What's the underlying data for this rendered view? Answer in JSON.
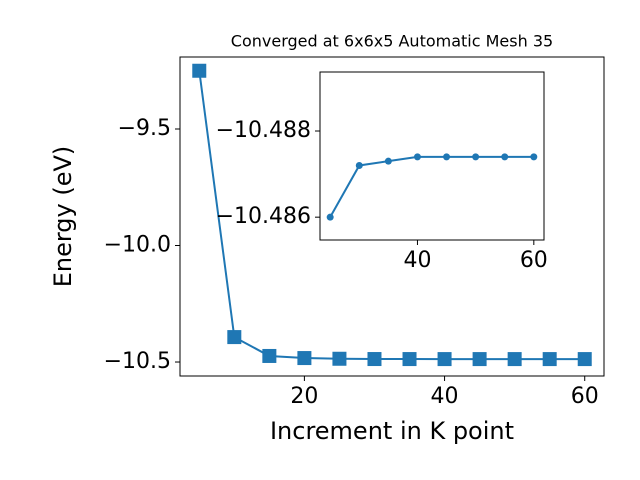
{
  "chart_data": [
    {
      "type": "line",
      "title": "Converged at 6x6x5 Automatic Mesh 35",
      "x_label": "Increment in K point",
      "y_label": "Energy (eV)",
      "x": [
        5,
        10,
        15,
        20,
        25,
        30,
        35,
        40,
        45,
        50,
        55,
        60
      ],
      "values": [
        -9.25,
        -10.393,
        -10.474,
        -10.483,
        -10.486,
        -10.4872,
        -10.4873,
        -10.4874,
        -10.4874,
        -10.4874,
        -10.4874,
        -10.4874
      ],
      "color": "#1f77b4",
      "marker": "square",
      "xlim": [
        2.25,
        62.75
      ],
      "xticks": [
        20,
        40,
        60
      ],
      "ylim": [
        -10.56,
        -9.191
      ],
      "yticks": [
        {
          "value": -10.5,
          "label": "−10.5"
        },
        {
          "value": -10.0,
          "label": "−10.0"
        },
        {
          "value": -9.5,
          "label": "−9.5"
        }
      ]
    },
    {
      "type": "line",
      "x": [
        25,
        30,
        35,
        40,
        45,
        50,
        55,
        60
      ],
      "values": [
        -10.486,
        -10.4872,
        -10.4873,
        -10.4874,
        -10.4874,
        -10.4874,
        -10.4874,
        -10.4874
      ],
      "color": "#1f77b4",
      "marker": "circle",
      "xlim": [
        23.25,
        61.75
      ],
      "xticks": [
        40,
        60
      ],
      "ylim": [
        -10.48547,
        -10.48937
      ],
      "yticks": [
        {
          "value": -10.486,
          "label": "−10.486"
        },
        {
          "value": -10.488,
          "label": "−10.488"
        }
      ]
    }
  ]
}
